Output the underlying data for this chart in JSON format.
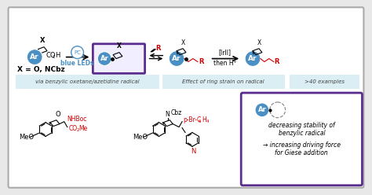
{
  "bg_color": "#e8e8e8",
  "panel_bg": "#ffffff",
  "border_color": "#aaaaaa",
  "purple_box_color": "#5b2d8e",
  "blue_circle_color": "#4a90c4",
  "blue_text_color": "#4a90c4",
  "red_text_color": "#cc0000",
  "light_blue_bg": "#daeef3",
  "top_labels": [
    "via benzylic oxetane/azetidine radical",
    "Effect of ring strain on radical",
    ">40 examples"
  ],
  "x_eq": "X = O, NCbz",
  "pc_label": "PC",
  "blue_leds": "blue LEDs",
  "ir_label": "[Irll]",
  "then_h": "then H⁺",
  "bottom_box_text1": "decreasing stability of",
  "bottom_box_text2": "benzylic radical",
  "bottom_box_text3": "→ increasing driving force",
  "bottom_box_text4": "for Giese addition"
}
